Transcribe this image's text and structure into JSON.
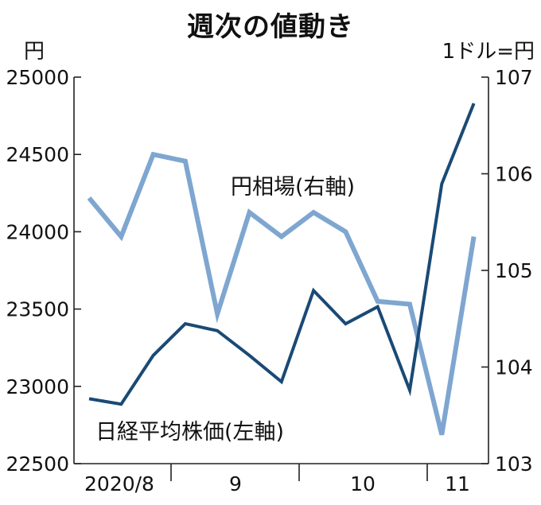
{
  "title": "週次の値動き",
  "unit_left": "円",
  "unit_right": "1ドル=円",
  "chart_data": {
    "type": "line",
    "x": [
      1,
      2,
      3,
      4,
      5,
      6,
      7,
      8,
      9,
      10,
      11,
      12,
      13
    ],
    "x_tick_labels": [
      "2020/8",
      "9",
      "10",
      "11"
    ],
    "series": [
      {
        "name": "円相場(右軸)",
        "axis": "right",
        "color": "#7ea6d0",
        "values": [
          105.75,
          105.35,
          106.2,
          106.13,
          104.55,
          105.6,
          105.35,
          105.6,
          105.4,
          104.68,
          104.65,
          103.3,
          105.35
        ]
      },
      {
        "name": "日経平均株価(左軸)",
        "axis": "left",
        "color": "#1a4a75",
        "values": [
          22920,
          22885,
          23200,
          23405,
          23360,
          23200,
          23030,
          23620,
          23405,
          23515,
          22975,
          24310,
          24830
        ]
      }
    ],
    "y_left": {
      "ylim": [
        22500,
        25000
      ],
      "ticks": [
        22500,
        23000,
        23500,
        24000,
        24500,
        25000
      ],
      "tick_labels": [
        "22500",
        "23000",
        "23500",
        "24000",
        "24500",
        "25000"
      ]
    },
    "y_right": {
      "ylim": [
        103,
        107
      ],
      "ticks": [
        103,
        104,
        105,
        106,
        107
      ],
      "tick_labels": [
        "103",
        "104",
        "105",
        "106",
        "107"
      ]
    },
    "grid": false
  }
}
